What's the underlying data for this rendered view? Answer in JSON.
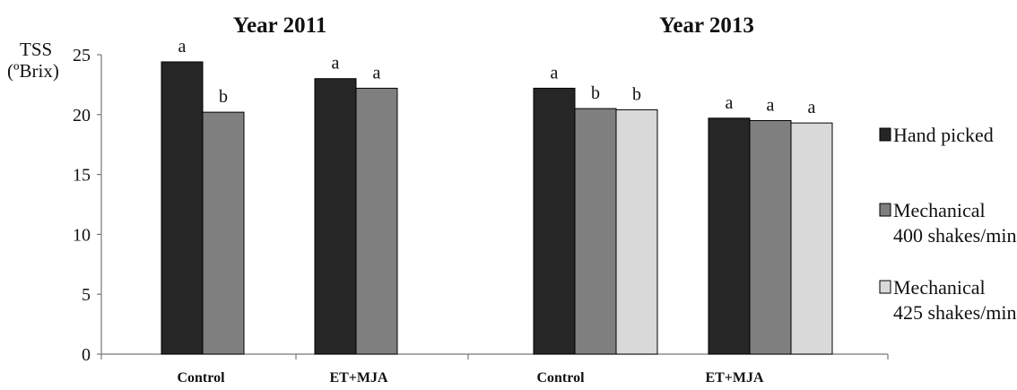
{
  "chart_data": {
    "type": "bar",
    "ylabel_line1": "TSS",
    "ylabel_line2": "(ºBrix)",
    "ylim": [
      0,
      25
    ],
    "yticks": [
      "0",
      "5",
      "10",
      "15",
      "20",
      "25"
    ],
    "grid": false,
    "legend_position": "right",
    "series": [
      {
        "name": "Hand picked",
        "color": "#262626"
      },
      {
        "name": "Mechanical 400 shakes/min",
        "name_lines": [
          "Mechanical",
          "400 shakes/min"
        ],
        "color": "#7f7f7f"
      },
      {
        "name": "Mechanical 425 shakes/min",
        "name_lines": [
          "Mechanical",
          "425 shakes/min"
        ],
        "color": "#d9d9d9"
      }
    ],
    "panels": [
      {
        "title": "Year 2011",
        "categories": [
          {
            "label": "Control",
            "values": [
              24.4,
              20.2
            ],
            "letters": [
              "a",
              "b"
            ]
          },
          {
            "label": "ET+MJA",
            "values": [
              23.0,
              22.2
            ],
            "letters": [
              "a",
              "a"
            ]
          }
        ]
      },
      {
        "title": "Year 2013",
        "categories": [
          {
            "label": "Control",
            "values": [
              22.2,
              20.5,
              20.4
            ],
            "letters": [
              "a",
              "b",
              "b"
            ]
          },
          {
            "label": "ET+MJA",
            "values": [
              19.7,
              19.5,
              19.3
            ],
            "letters": [
              "a",
              "a",
              "a"
            ]
          }
        ]
      }
    ]
  }
}
